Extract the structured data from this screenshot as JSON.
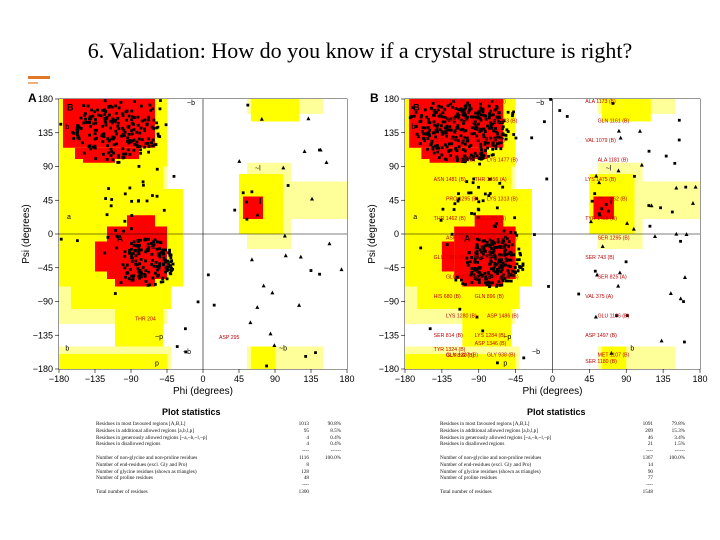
{
  "slide": {
    "title": "6. Validation: How do you know if a crystal structure is right?"
  },
  "colors": {
    "core": "#ff0000",
    "allowed": "#ffff00",
    "generous": "#ffff99",
    "accent": "#e07a2a"
  },
  "axis": {
    "xlabel": "Phi (degrees)",
    "ylabel": "Psi (degrees)",
    "ticks": [
      "-180",
      "-135",
      "-90",
      "-45",
      "0",
      "45",
      "90",
      "135",
      "180"
    ],
    "tick_labels": [
      "−180",
      "−135",
      "−90",
      "−45",
      "0",
      "45",
      "90",
      "135",
      "180"
    ]
  },
  "plots": [
    {
      "label": "A",
      "region_labels": [
        "B",
        "b",
        "~b",
        "A",
        "a",
        "~a",
        "l",
        "~l",
        "p",
        "~p",
        "~b",
        "~b",
        "b"
      ],
      "residue_labels": [
        "THR 204",
        "ASP 295"
      ],
      "stats_title": "Plot statistics",
      "stats": [
        {
          "label": "Residues in most favoured regions [A,B,L]",
          "n": "1013",
          "p": "90.8%"
        },
        {
          "label": "Residues in additional allowed regions [a,b,l,p]",
          "n": "95",
          "p": "8.5%"
        },
        {
          "label": "Residues in generously allowed regions [~a,~b,~l,~p]",
          "n": "4",
          "p": "0.4%"
        },
        {
          "label": "Residues in disallowed regions",
          "n": "4",
          "p": "0.4%"
        },
        {
          "label": "",
          "n": "----",
          "p": "------"
        },
        {
          "label": "Number of non-glycine and non-proline residues",
          "n": "1116",
          "p": "100.0%"
        },
        {
          "label": "",
          "n": "",
          "p": ""
        },
        {
          "label": "Number of end-residues (excl. Gly and Pro)",
          "n": "8",
          "p": ""
        },
        {
          "label": "",
          "n": "",
          "p": ""
        },
        {
          "label": "Number of glycine residues (shown as triangles)",
          "n": "128",
          "p": ""
        },
        {
          "label": "Number of proline residues",
          "n": "48",
          "p": ""
        },
        {
          "label": "",
          "n": "----",
          "p": ""
        },
        {
          "label": "Total number of residues",
          "n": "1300",
          "p": ""
        }
      ]
    },
    {
      "label": "B",
      "region_labels": [
        "B",
        "b",
        "~b",
        "A",
        "a",
        "~a",
        "l",
        "~l",
        "p",
        "~p",
        "~b",
        "b"
      ],
      "residue_labels": [
        "SER 1301 (B)",
        "GLU 1112 (B)",
        "ALA 1173 (B)",
        "PHE 1174 (B)",
        "LYS 1133 (B)",
        "GLN 1161 (B)",
        "SER 1303 (B)",
        "LYS 1106 (B)",
        "VAL 1079 (B)",
        "THR 363 (B)",
        "LYS 1477 (B)",
        "ALA 1181 (B)",
        "ASN 1481 (B)",
        "THR 1456 (A)",
        "LYS 1475 (B)",
        "PRO 1295 (B)",
        "LYS 1313 (B)",
        "PRO 862 (B)",
        "THR 1462 (B)",
        "LEU 1297 (B)",
        "TYR 1485 (B)",
        "ASP 732 (B)",
        "LYS 1315 (B)",
        "SER 1295 (B)",
        "GLU 1301 (B)",
        "ALA 983 (B)",
        "SER 743 (B)",
        "GLU 1471 (B)",
        "ASP 1302 (B)",
        "SER 825 (A)",
        "HIS 680 (B)",
        "GLN 896 (B)",
        "VAL 375 (A)",
        "LYS 1280 (B)",
        "ASP 1486 (B)",
        "GLU 1166 (B)",
        "SER 814 (B)",
        "LYS 1284 (B)",
        "ASP 1497 (B)",
        "GLN 1307 (B)",
        "GLY 938 (B)",
        "MET 1107 (B)",
        "TYR 1324 (B)",
        "ASP 1346 (B)",
        "SER 1180 (B)",
        "GLY 892 (B)"
      ],
      "stats_title": "Plot statistics",
      "stats": [
        {
          "label": "Residues in most favoured regions [A,B,L]",
          "n": "1091",
          "p": "79.8%"
        },
        {
          "label": "Residues in additional allowed regions [a,b,l,p]",
          "n": "209",
          "p": "15.3%"
        },
        {
          "label": "Residues in generously allowed regions [~a,~b,~l,~p]",
          "n": "46",
          "p": "3.4%"
        },
        {
          "label": "Residues in disallowed regions",
          "n": "21",
          "p": "1.5%"
        },
        {
          "label": "",
          "n": "----",
          "p": "------"
        },
        {
          "label": "Number of non-glycine and non-proline residues",
          "n": "1367",
          "p": "100.0%"
        },
        {
          "label": "",
          "n": "",
          "p": ""
        },
        {
          "label": "Number of end-residues (excl. Gly and Pro)",
          "n": "14",
          "p": ""
        },
        {
          "label": "",
          "n": "",
          "p": ""
        },
        {
          "label": "Number of glycine residues (shown as triangles)",
          "n": "90",
          "p": ""
        },
        {
          "label": "Number of proline residues",
          "n": "77",
          "p": ""
        },
        {
          "label": "",
          "n": "----",
          "p": ""
        },
        {
          "label": "Total number of residues",
          "n": "1548",
          "p": ""
        }
      ]
    }
  ]
}
